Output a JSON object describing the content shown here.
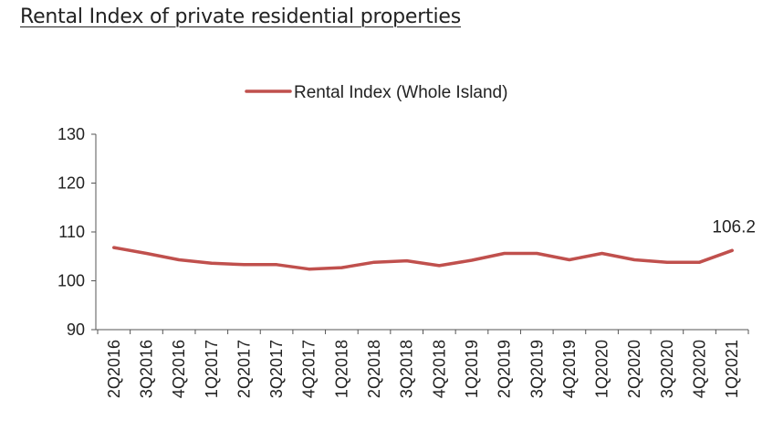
{
  "page": {
    "title": "Rental Index of private residential properties"
  },
  "chart_data": {
    "type": "line",
    "title": "",
    "xlabel": "",
    "ylabel": "",
    "categories": [
      "2Q2016",
      "3Q2016",
      "4Q2016",
      "1Q2017",
      "2Q2017",
      "3Q2017",
      "4Q2017",
      "1Q2018",
      "2Q2018",
      "3Q2018",
      "4Q2018",
      "1Q2019",
      "2Q2019",
      "3Q2019",
      "4Q2019",
      "1Q2020",
      "2Q2020",
      "3Q2020",
      "4Q2020",
      "1Q2021"
    ],
    "series": [
      {
        "name": "Rental Index (Whole Island)",
        "color": "#c0504d",
        "values": [
          106.8,
          105.6,
          104.3,
          103.6,
          103.3,
          103.3,
          102.4,
          102.7,
          103.8,
          104.1,
          103.1,
          104.2,
          105.6,
          105.6,
          104.3,
          105.6,
          104.3,
          103.8,
          103.8,
          106.2
        ]
      }
    ],
    "ylim": [
      90,
      130
    ],
    "yticks": [
      90,
      100,
      110,
      120,
      130
    ],
    "grid": false,
    "legend": "top-center",
    "annotations": [
      {
        "category": "1Q2021",
        "text": "106.2"
      }
    ]
  }
}
